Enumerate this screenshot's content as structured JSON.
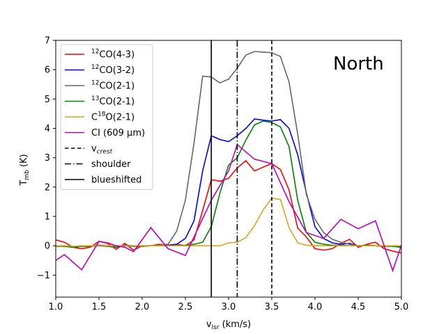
{
  "chart_data": {
    "type": "line",
    "title": "",
    "xlabel": "v_lsr (km/s)",
    "ylabel": "T_mb (K)",
    "xlim": [
      1.0,
      5.0
    ],
    "ylim": [
      -1.75,
      7.0
    ],
    "xticks": [
      "1.0",
      "1.5",
      "2.0",
      "2.5",
      "3.0",
      "3.5",
      "4.0",
      "4.5",
      "5.0"
    ],
    "yticks": [
      "−1",
      "0",
      "1",
      "2",
      "3",
      "4",
      "5",
      "6",
      "7"
    ],
    "legend_position": "upper-left",
    "annotation": "North",
    "series": [
      {
        "name": "12CO(4-3)",
        "label_sup": "12",
        "label_main": "CO(4-3)",
        "color": "#ff0000",
        "x": [
          1.0,
          1.1,
          1.2,
          1.3,
          1.4,
          1.5,
          1.6,
          1.7,
          1.8,
          1.9,
          2.0,
          2.1,
          2.2,
          2.3,
          2.4,
          2.5,
          2.6,
          2.7,
          2.8,
          2.9,
          3.0,
          3.1,
          3.2,
          3.3,
          3.4,
          3.5,
          3.6,
          3.7,
          3.8,
          3.9,
          4.0,
          4.1,
          4.2,
          4.3,
          4.4,
          4.5,
          4.6,
          4.7,
          4.8,
          4.9,
          5.0
        ],
        "y": [
          0.2,
          0.12,
          -0.05,
          -0.1,
          -0.05,
          0.15,
          0.08,
          -0.12,
          0.08,
          -0.15,
          0.0,
          0.0,
          0.05,
          0.02,
          0.05,
          0.0,
          0.2,
          1.2,
          2.25,
          2.2,
          2.3,
          2.65,
          2.9,
          2.55,
          2.68,
          2.8,
          2.6,
          1.9,
          0.6,
          0.3,
          -0.1,
          -0.15,
          -0.1,
          0.08,
          0.22,
          -0.05,
          0.05,
          0.12,
          -0.1,
          -0.18,
          -0.25
        ]
      },
      {
        "name": "12CO(3-2)",
        "label_sup": "12",
        "label_main": "CO(3-2)",
        "color": "#0000ff",
        "x": [
          1.0,
          1.1,
          1.2,
          1.3,
          1.4,
          1.5,
          1.6,
          1.7,
          1.8,
          1.9,
          2.0,
          2.1,
          2.2,
          2.3,
          2.4,
          2.5,
          2.6,
          2.7,
          2.8,
          2.9,
          3.0,
          3.1,
          3.2,
          3.3,
          3.4,
          3.5,
          3.6,
          3.7,
          3.8,
          3.9,
          4.0,
          4.1,
          4.2,
          4.3,
          4.4,
          4.5,
          4.6,
          4.7,
          4.8,
          4.9,
          5.0
        ],
        "y": [
          0.0,
          -0.02,
          -0.05,
          -0.02,
          -0.02,
          0.02,
          0.0,
          -0.05,
          0.02,
          0.0,
          -0.02,
          0.0,
          0.0,
          0.02,
          0.05,
          0.25,
          0.85,
          2.55,
          3.75,
          3.62,
          3.55,
          3.75,
          4.0,
          4.32,
          4.28,
          4.25,
          4.3,
          4.0,
          3.1,
          1.8,
          0.65,
          0.25,
          0.1,
          0.05,
          0.08,
          0.0,
          0.02,
          0.0,
          -0.02,
          0.0,
          -0.02
        ]
      },
      {
        "name": "12CO(2-1)",
        "label_sup": "12",
        "label_main": "CO(2-1)",
        "color": "#666666",
        "x": [
          1.0,
          1.1,
          1.2,
          1.3,
          1.4,
          1.5,
          1.6,
          1.7,
          1.8,
          1.9,
          2.0,
          2.1,
          2.2,
          2.3,
          2.4,
          2.5,
          2.6,
          2.7,
          2.8,
          2.9,
          3.0,
          3.1,
          3.2,
          3.3,
          3.4,
          3.5,
          3.6,
          3.7,
          3.8,
          3.9,
          4.0,
          4.1,
          4.2,
          4.3,
          4.4,
          4.5,
          4.6,
          4.7,
          4.8,
          4.9,
          5.0
        ],
        "y": [
          0.0,
          -0.02,
          -0.03,
          0.0,
          -0.02,
          0.0,
          -0.02,
          -0.05,
          0.0,
          -0.02,
          0.0,
          0.0,
          0.02,
          0.05,
          0.5,
          1.55,
          3.5,
          5.78,
          5.75,
          5.55,
          5.68,
          6.05,
          6.5,
          6.62,
          6.6,
          6.58,
          6.45,
          5.58,
          3.8,
          1.75,
          0.9,
          0.45,
          0.22,
          0.12,
          0.05,
          0.0,
          0.02,
          0.0,
          0.0,
          -0.02,
          -0.05
        ]
      },
      {
        "name": "13CO(2-1)",
        "label_sup": "13",
        "label_main": "CO(2-1)",
        "color": "#008000",
        "x": [
          1.0,
          1.1,
          1.2,
          1.3,
          1.4,
          1.5,
          1.6,
          1.7,
          1.8,
          1.9,
          2.0,
          2.1,
          2.2,
          2.3,
          2.4,
          2.5,
          2.6,
          2.7,
          2.8,
          2.9,
          3.0,
          3.1,
          3.2,
          3.3,
          3.4,
          3.5,
          3.6,
          3.7,
          3.8,
          3.9,
          4.0,
          4.1,
          4.2,
          4.3,
          4.4,
          4.5,
          4.6,
          4.7,
          4.8,
          4.9,
          5.0
        ],
        "y": [
          -0.02,
          -0.02,
          -0.05,
          -0.02,
          -0.02,
          0.0,
          -0.02,
          -0.05,
          0.0,
          -0.02,
          -0.02,
          0.0,
          0.0,
          0.0,
          0.0,
          0.02,
          0.05,
          0.12,
          0.65,
          1.8,
          2.75,
          3.0,
          3.6,
          4.12,
          4.25,
          4.2,
          4.05,
          3.38,
          1.55,
          0.45,
          0.12,
          0.05,
          0.02,
          0.02,
          0.0,
          0.0,
          0.02,
          0.0,
          -0.02,
          -0.02,
          -0.05
        ]
      },
      {
        "name": "C18O(2-1)",
        "label_pre": "C",
        "label_sup": "18",
        "label_main": "O(2-1)",
        "color": "#daa520",
        "x": [
          1.0,
          1.1,
          1.2,
          1.3,
          1.4,
          1.5,
          1.6,
          1.7,
          1.8,
          1.9,
          2.0,
          2.1,
          2.2,
          2.3,
          2.4,
          2.5,
          2.6,
          2.7,
          2.8,
          2.9,
          3.0,
          3.1,
          3.2,
          3.3,
          3.4,
          3.5,
          3.6,
          3.7,
          3.8,
          3.9,
          4.0,
          4.1,
          4.2,
          4.3,
          4.4,
          4.5,
          4.6,
          4.7,
          4.8,
          4.9,
          5.0
        ],
        "y": [
          0.0,
          0.0,
          -0.02,
          0.0,
          0.0,
          0.0,
          0.0,
          0.0,
          0.0,
          0.0,
          0.0,
          0.0,
          0.0,
          0.0,
          0.0,
          0.0,
          0.0,
          0.0,
          0.0,
          0.0,
          0.1,
          0.12,
          0.28,
          0.68,
          1.22,
          1.62,
          1.58,
          0.62,
          0.1,
          0.02,
          0.0,
          0.0,
          0.0,
          0.0,
          0.0,
          0.0,
          0.0,
          0.0,
          0.0,
          0.0,
          0.0
        ]
      },
      {
        "name": "CI (609 μm)",
        "label_main": "CI (609 μm)",
        "color": "#bf00bf",
        "x": [
          1.0,
          1.1,
          1.3,
          1.5,
          1.6,
          1.7,
          1.8,
          1.9,
          2.1,
          2.3,
          2.5,
          2.8,
          3.0,
          3.1,
          3.2,
          3.3,
          3.5,
          3.7,
          3.9,
          4.1,
          4.3,
          4.5,
          4.7,
          4.9,
          5.0
        ],
        "y": [
          -0.5,
          -0.3,
          -0.82,
          0.15,
          0.1,
          0.0,
          -0.05,
          -0.2,
          0.62,
          -0.1,
          -0.33,
          1.55,
          2.55,
          3.45,
          3.2,
          2.95,
          2.8,
          1.5,
          0.45,
          0.25,
          0.9,
          0.58,
          0.85,
          -0.85,
          0.02
        ]
      }
    ],
    "vlines": [
      {
        "name": "v_crest",
        "label_main": "v",
        "label_sub": "crest",
        "x": 3.5,
        "style": "dashed"
      },
      {
        "name": "shoulder",
        "label_main": "shoulder",
        "x": 3.1,
        "style": "dashdot"
      },
      {
        "name": "blueshifted",
        "label_main": "blueshifted",
        "x": 2.8,
        "style": "solid"
      }
    ]
  }
}
